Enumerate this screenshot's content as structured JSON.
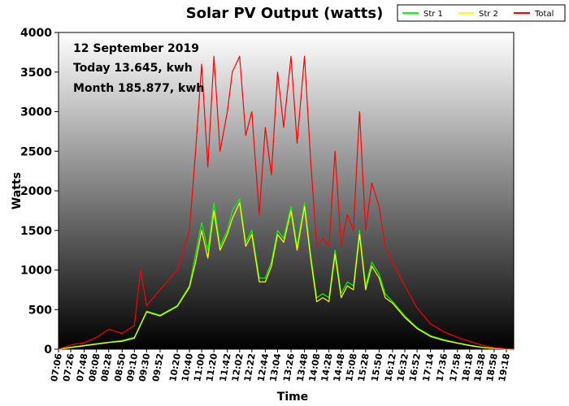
{
  "chart_data": {
    "type": "line",
    "title": "Solar PV Output (watts)",
    "xlabel": "Time",
    "ylabel": "Watts",
    "ylim": [
      0,
      4000
    ],
    "y_ticks": [
      0,
      500,
      1000,
      1500,
      2000,
      2500,
      3000,
      3500,
      4000
    ],
    "x_tick_labels": [
      "07:06",
      "07:26",
      "07:48",
      "08:08",
      "08:28",
      "08:50",
      "09:10",
      "09:30",
      "09:52",
      "10:20",
      "10:40",
      "11:00",
      "11:20",
      "11:42",
      "12:02",
      "12:22",
      "12:44",
      "13:04",
      "13:26",
      "13:48",
      "14:08",
      "14:28",
      "14:48",
      "15:08",
      "15:28",
      "15:50",
      "16:12",
      "16:32",
      "16:52",
      "17:14",
      "17:36",
      "17:58",
      "18:18",
      "18:38",
      "18:58",
      "19:18"
    ],
    "x_range": [
      "07:06",
      "19:30"
    ],
    "grid": false,
    "legend_position": "top-right",
    "annotations": [
      "12 September 2019",
      "Today 13.645, kwh",
      "Month 185.877, kwh"
    ],
    "series": [
      {
        "name": "Str 1",
        "color": "#00ff00",
        "x": [
          "07:06",
          "07:30",
          "08:00",
          "08:30",
          "08:50",
          "09:10",
          "09:30",
          "09:52",
          "10:20",
          "10:40",
          "10:50",
          "11:00",
          "11:10",
          "11:20",
          "11:30",
          "11:42",
          "11:50",
          "12:02",
          "12:12",
          "12:22",
          "12:34",
          "12:44",
          "12:54",
          "13:04",
          "13:14",
          "13:26",
          "13:36",
          "13:48",
          "13:58",
          "14:08",
          "14:18",
          "14:28",
          "14:38",
          "14:48",
          "14:58",
          "15:08",
          "15:18",
          "15:28",
          "15:38",
          "15:50",
          "16:00",
          "16:12",
          "16:32",
          "16:52",
          "17:14",
          "17:36",
          "17:58",
          "18:18",
          "18:38",
          "18:58",
          "19:18",
          "19:30"
        ],
        "y": [
          0,
          30,
          60,
          90,
          110,
          150,
          480,
          430,
          550,
          800,
          1200,
          1600,
          1250,
          1850,
          1300,
          1500,
          1750,
          1900,
          1350,
          1500,
          900,
          900,
          1100,
          1500,
          1400,
          1800,
          1300,
          1850,
          1200,
          650,
          700,
          650,
          1250,
          700,
          850,
          800,
          1500,
          800,
          1100,
          950,
          700,
          600,
          420,
          270,
          170,
          120,
          80,
          50,
          25,
          10,
          3,
          0
        ]
      },
      {
        "name": "Str 2",
        "color": "#ffff00",
        "x": [
          "07:06",
          "07:30",
          "08:00",
          "08:30",
          "08:50",
          "09:10",
          "09:30",
          "09:52",
          "10:20",
          "10:40",
          "10:50",
          "11:00",
          "11:10",
          "11:20",
          "11:30",
          "11:42",
          "11:50",
          "12:02",
          "12:12",
          "12:22",
          "12:34",
          "12:44",
          "12:54",
          "13:04",
          "13:14",
          "13:26",
          "13:36",
          "13:48",
          "13:58",
          "14:08",
          "14:18",
          "14:28",
          "14:38",
          "14:48",
          "14:58",
          "15:08",
          "15:18",
          "15:28",
          "15:38",
          "15:50",
          "16:00",
          "16:12",
          "16:32",
          "16:52",
          "17:14",
          "17:36",
          "17:58",
          "18:18",
          "18:38",
          "18:58",
          "19:18",
          "19:30"
        ],
        "y": [
          0,
          25,
          55,
          85,
          100,
          140,
          470,
          420,
          540,
          780,
          1100,
          1500,
          1150,
          1750,
          1250,
          1450,
          1650,
          1850,
          1300,
          1450,
          850,
          850,
          1050,
          1450,
          1350,
          1750,
          1250,
          1800,
          1150,
          600,
          650,
          600,
          1200,
          650,
          800,
          750,
          1450,
          750,
          1050,
          900,
          650,
          580,
          400,
          260,
          160,
          110,
          75,
          45,
          22,
          8,
          2,
          0
        ]
      },
      {
        "name": "Total",
        "color": "#ff0000",
        "x": [
          "07:06",
          "07:30",
          "07:48",
          "08:08",
          "08:28",
          "08:50",
          "09:10",
          "09:20",
          "09:30",
          "09:52",
          "10:20",
          "10:40",
          "10:50",
          "11:00",
          "11:10",
          "11:20",
          "11:30",
          "11:42",
          "11:50",
          "12:02",
          "12:12",
          "12:22",
          "12:34",
          "12:44",
          "12:54",
          "13:04",
          "13:14",
          "13:26",
          "13:36",
          "13:48",
          "13:58",
          "14:08",
          "14:18",
          "14:28",
          "14:38",
          "14:48",
          "14:58",
          "15:08",
          "15:18",
          "15:28",
          "15:38",
          "15:50",
          "16:00",
          "16:12",
          "16:32",
          "16:52",
          "17:14",
          "17:36",
          "17:58",
          "18:18",
          "18:38",
          "18:58",
          "19:18",
          "19:30"
        ],
        "y": [
          0,
          60,
          80,
          150,
          250,
          200,
          300,
          1000,
          550,
          750,
          1000,
          1500,
          2500,
          3600,
          2300,
          3700,
          2500,
          3000,
          3500,
          3700,
          2700,
          3000,
          1700,
          2800,
          2200,
          3500,
          2800,
          3700,
          2600,
          3700,
          2400,
          1300,
          1400,
          1300,
          2500,
          1300,
          1700,
          1500,
          3000,
          1500,
          2100,
          1800,
          1300,
          1100,
          800,
          520,
          320,
          220,
          150,
          100,
          50,
          20,
          5,
          0
        ]
      }
    ]
  }
}
